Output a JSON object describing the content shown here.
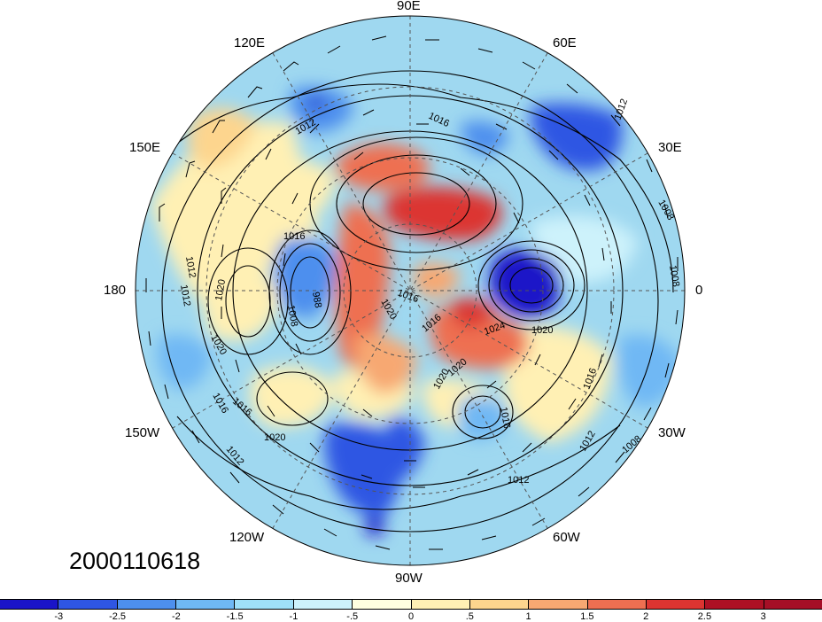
{
  "map": {
    "projection": "polar-stereographic-north",
    "timestamp": "2000110618",
    "longitude_labels": [
      {
        "id": "90e",
        "text": "90E"
      },
      {
        "id": "60e",
        "text": "60E"
      },
      {
        "id": "30e",
        "text": "30E"
      },
      {
        "id": "0",
        "text": "0"
      },
      {
        "id": "30w",
        "text": "30W"
      },
      {
        "id": "60w",
        "text": "60W"
      },
      {
        "id": "90w",
        "text": "90W"
      },
      {
        "id": "120w",
        "text": "120W"
      },
      {
        "id": "150w",
        "text": "150W"
      },
      {
        "id": "180",
        "text": "180"
      },
      {
        "id": "150e",
        "text": "150E"
      },
      {
        "id": "120e",
        "text": "120E"
      }
    ],
    "isobar_labels": [
      "1012",
      "1016",
      "1008",
      "1012",
      "1012",
      "1016",
      "1012",
      "1020",
      "1020",
      "1008",
      "988",
      "1016",
      "1016",
      "1020",
      "1024",
      "1020",
      "1016",
      "1020",
      "1012",
      "1016",
      "1020",
      "1012",
      "1012",
      "1008",
      "1008",
      "1016",
      "1020",
      "1016"
    ],
    "colors": {
      "ocean_background": "#9fd8f0"
    }
  },
  "colorbar": {
    "ticks": [
      "-3",
      "-2.5",
      "-2",
      "-1.5",
      "-1",
      "-.5",
      "0",
      ".5",
      "1",
      "1.5",
      "2",
      "2.5",
      "3"
    ],
    "colors": [
      "#1a14c8",
      "#2f56e3",
      "#4d8fee",
      "#6fb8f4",
      "#9fe0f8",
      "#cdf2fb",
      "#ffffe0",
      "#fff0b4",
      "#fdd58e",
      "#f7a872",
      "#ee6f51",
      "#dc3431",
      "#ad1024",
      "#a50f26"
    ]
  }
}
